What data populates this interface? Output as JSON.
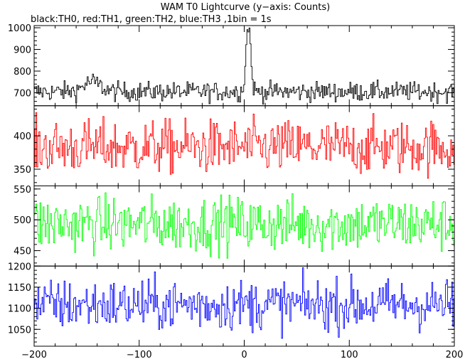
{
  "chart_data": {
    "type": "line",
    "title": "WAM T0 Lightcurve (y−axis: Counts)",
    "subtitle": "black:TH0, red:TH1, green:TH2, blue:TH3 ,1bin = 1s",
    "xlim": [
      -200,
      200
    ],
    "x_ticks": [
      -200,
      -100,
      0,
      100,
      200
    ],
    "x_start": -200,
    "x_step": 1,
    "panels": [
      {
        "series": "TH0",
        "color": "#000000",
        "ylim": [
          640,
          1010
        ],
        "y_ticks": [
          700,
          800,
          900,
          1000
        ],
        "y_tick_labels": [
          "700",
          "800",
          "900",
          "1000"
        ],
        "baseline": 705,
        "noise": 22,
        "features": [
          {
            "type": "bump",
            "center": -145,
            "width": 8,
            "height": 45
          },
          {
            "type": "peak",
            "center": 4,
            "width": 2.2,
            "height": 310
          }
        ]
      },
      {
        "series": "TH1",
        "color": "#ff0000",
        "ylim": [
          325,
          445
        ],
        "y_ticks": [
          350,
          400
        ],
        "y_tick_labels": [
          "350",
          "400"
        ],
        "baseline": 383,
        "noise": 20,
        "features": []
      },
      {
        "series": "TH2",
        "color": "#00ff00",
        "ylim": [
          425,
          555
        ],
        "y_ticks": [
          450,
          500,
          550
        ],
        "y_tick_labels": [
          "450",
          "500",
          "550"
        ],
        "baseline": 493,
        "noise": 22,
        "features": []
      },
      {
        "series": "TH3",
        "color": "#0000ff",
        "ylim": [
          1010,
          1200
        ],
        "y_ticks": [
          1050,
          1100,
          1150,
          1200
        ],
        "y_tick_labels": [
          "1050",
          "1100",
          "1150",
          "1200"
        ],
        "baseline": 1108,
        "noise": 30,
        "features": []
      }
    ]
  }
}
